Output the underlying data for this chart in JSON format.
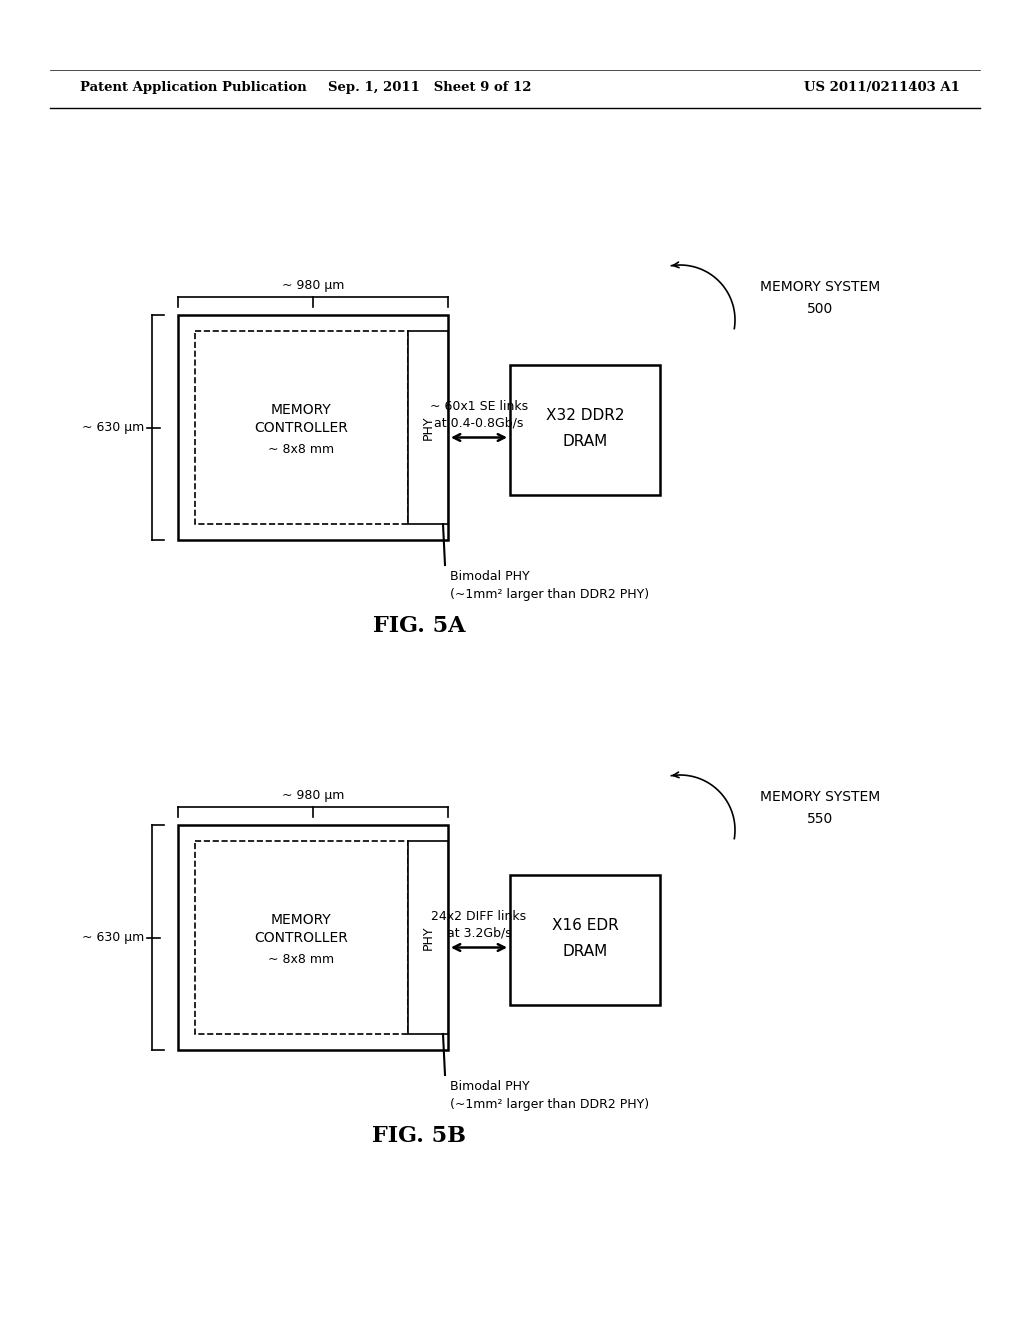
{
  "background_color": "#ffffff",
  "header_left": "Patent Application Publication",
  "header_mid": "Sep. 1, 2011   Sheet 9 of 12",
  "header_right": "US 2011/0211403 A1",
  "fig5a": {
    "title": "FIG. 5A",
    "memory_system_label": "MEMORY SYSTEM",
    "memory_system_num": "500",
    "dim_980": "~ 980 μm",
    "dim_630": "~ 630 μm",
    "mc_label1": "MEMORY",
    "mc_label2": "CONTROLLER",
    "mc_label3": "~ 8x8 mm",
    "phy_label": "PHY",
    "dram_label1": "X32 DDR2",
    "dram_label2": "DRAM",
    "link_label1": "~ 60x1 SE links",
    "link_label2": "at 0.4-0.8Gb/s",
    "bimodal_label1": "Bimodal PHY",
    "bimodal_label2": "(~1mm² larger than DDR2 PHY)"
  },
  "fig5b": {
    "title": "FIG. 5B",
    "memory_system_label": "MEMORY SYSTEM",
    "memory_system_num": "550",
    "dim_980": "~ 980 μm",
    "dim_630": "~ 630 μm",
    "mc_label1": "MEMORY",
    "mc_label2": "CONTROLLER",
    "mc_label3": "~ 8x8 mm",
    "phy_label": "PHY",
    "dram_label1": "X16 EDR",
    "dram_label2": "DRAM",
    "link_label1": "24x2 DIFF links",
    "link_label2": "at 3.2Gb/s",
    "bimodal_label1": "Bimodal PHY",
    "bimodal_label2": "(~1mm² larger than DDR2 PHY)"
  }
}
